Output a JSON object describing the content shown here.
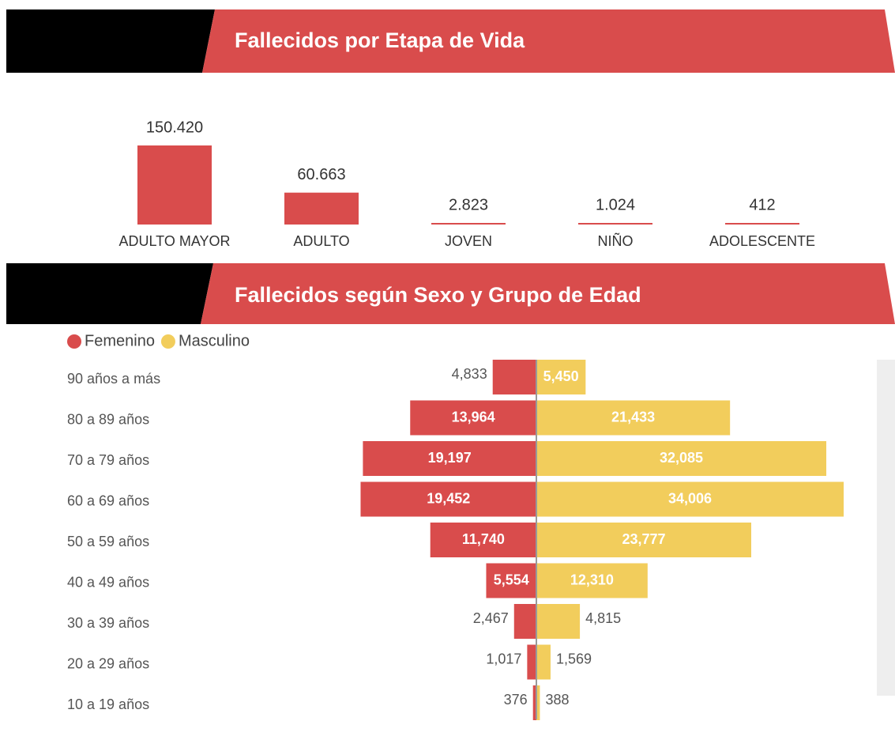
{
  "chart_data": [
    {
      "type": "bar",
      "title": "Fallecidos por Etapa de Vida",
      "categories": [
        "ADULTO MAYOR",
        "ADULTO",
        "JOVEN",
        "NIÑO",
        "ADOLESCENTE"
      ],
      "values": [
        150420,
        60663,
        2823,
        1024,
        412
      ],
      "value_labels": [
        "150.420",
        "60.663",
        "2.823",
        "1.024",
        "412"
      ],
      "color": "#d94c4c"
    },
    {
      "type": "pyramid",
      "title": "Fallecidos según Sexo y Grupo de Edad",
      "categories": [
        "90 años a más",
        "80 a 89 años",
        "70 a 79 años",
        "60 a 69 años",
        "50 a 59 años",
        "40 a 49 años",
        "30 a 39 años",
        "20 a 29 años",
        "10 a 19 años"
      ],
      "series": [
        {
          "name": "Femenino",
          "color": "#d94c4c",
          "values": [
            4833,
            13964,
            19197,
            19452,
            11740,
            5554,
            2467,
            1017,
            376
          ],
          "value_labels": [
            "4,833",
            "13,964",
            "19,197",
            "19,452",
            "11,740",
            "5,554",
            "2,467",
            "1,017",
            "376"
          ]
        },
        {
          "name": "Masculino",
          "color": "#f2cd5c",
          "values": [
            5450,
            21433,
            32085,
            34006,
            23777,
            12310,
            4815,
            1569,
            388
          ],
          "value_labels": [
            "5,450",
            "21,433",
            "32,085",
            "34,006",
            "23,777",
            "12,310",
            "4,815",
            "1,569",
            "388"
          ]
        }
      ]
    }
  ]
}
